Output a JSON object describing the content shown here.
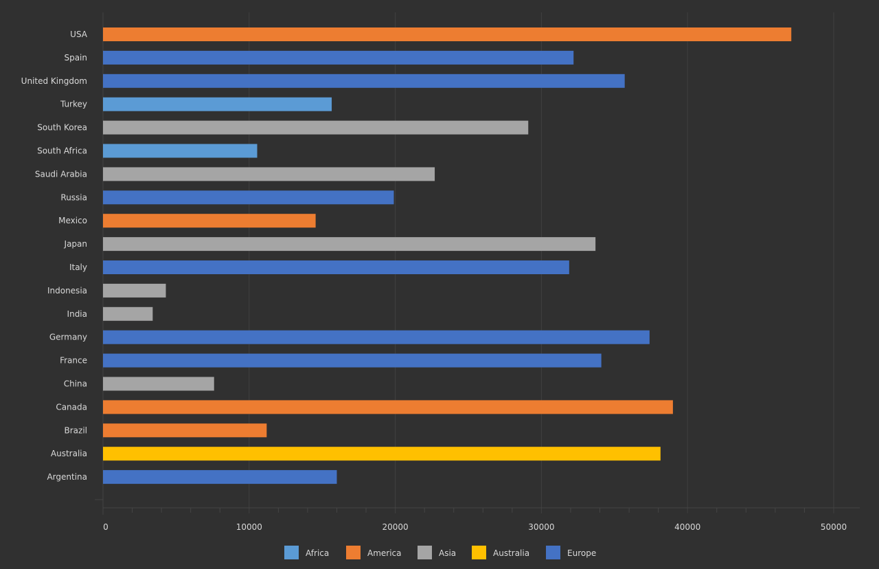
{
  "chart_data": {
    "type": "bar",
    "orientation": "horizontal",
    "categories": [
      "USA",
      "Spain",
      "United Kingdom",
      "Turkey",
      "South Korea",
      "South Africa",
      "Saudi Arabia",
      "Russia",
      "Mexico",
      "Japan",
      "Italy",
      "Indonesia",
      "India",
      "Germany",
      "France",
      "China",
      "Canada",
      "Brazil",
      "Australia",
      "Argentina"
    ],
    "values": [
      47100,
      32200,
      35700,
      15650,
      29100,
      10550,
      22700,
      19900,
      14550,
      33700,
      31900,
      4300,
      3400,
      37400,
      34100,
      7600,
      39000,
      11200,
      38150,
      16000
    ],
    "groups": [
      "America",
      "Europe",
      "Europe",
      "Africa",
      "Asia",
      "Africa",
      "Asia",
      "Europe",
      "America",
      "Asia",
      "Europe",
      "Asia",
      "Asia",
      "Europe",
      "Europe",
      "Asia",
      "America",
      "America",
      "Australia",
      "Europe"
    ],
    "legend": [
      {
        "name": "Africa",
        "color": "#5b9bd5"
      },
      {
        "name": "America",
        "color": "#ed7d31"
      },
      {
        "name": "Asia",
        "color": "#a5a5a5"
      },
      {
        "name": "Australia",
        "color": "#ffc000"
      },
      {
        "name": "Europe",
        "color": "#4472c4"
      }
    ],
    "xlim": [
      0,
      50000
    ],
    "xticks": [
      "0",
      "10000",
      "20000",
      "30000",
      "40000",
      "50000"
    ],
    "grid": true,
    "legend_position": "bottom",
    "title": "",
    "xlabel": "",
    "ylabel": ""
  }
}
